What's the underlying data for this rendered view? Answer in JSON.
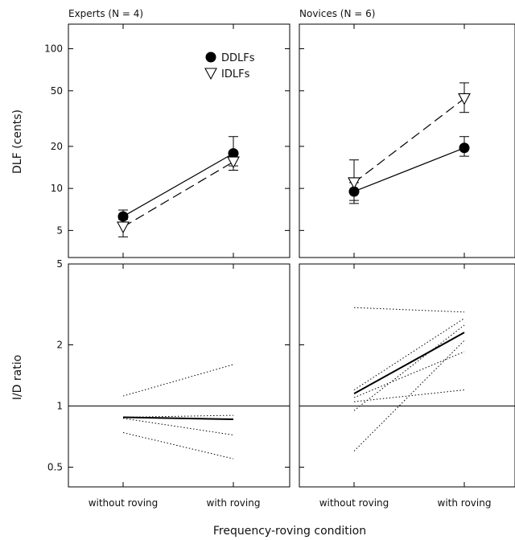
{
  "chart_data": {
    "type": "line",
    "xlabel": "Frequency-roving condition",
    "categories": [
      "without roving",
      "with roving"
    ],
    "top_panels": {
      "ylabel": "DLF (cents)",
      "y_scale": "log",
      "ylim": [
        3.2,
        150
      ],
      "yticks": [
        5,
        10,
        20,
        50,
        100
      ],
      "legend": {
        "placement": "top-right of left panel",
        "items": [
          "DDLFs",
          "IDLFs"
        ]
      },
      "panels": [
        {
          "title": "Experts (N = 4)",
          "series": [
            {
              "name": "DDLFs",
              "values": [
                6.3,
                17.8
              ],
              "err_lower": [
                5.6,
                14.5
              ],
              "err_upper": [
                7.0,
                23.5
              ]
            },
            {
              "name": "IDLFs",
              "values": [
                5.3,
                15.5
              ],
              "err_lower": [
                4.5,
                13.5
              ],
              "err_upper": [
                6.0,
                17.5
              ]
            }
          ]
        },
        {
          "title": "Novices (N = 6)",
          "series": [
            {
              "name": "DDLFs",
              "values": [
                9.5,
                19.5
              ],
              "err_lower": [
                8.2,
                17.0
              ],
              "err_upper": [
                11.0,
                23.5
              ]
            },
            {
              "name": "IDLFs",
              "values": [
                11.0,
                44.0
              ],
              "err_lower": [
                7.8,
                35.0
              ],
              "err_upper": [
                16.0,
                57.0
              ]
            }
          ]
        }
      ]
    },
    "bottom_panels": {
      "ylabel": "I/D ratio",
      "y_scale": "log",
      "ylim": [
        0.4,
        5
      ],
      "yticks": [
        0.5,
        1,
        2,
        5
      ],
      "reference_line": 1,
      "panels": [
        {
          "mean": [
            0.88,
            0.86
          ],
          "individuals": [
            [
              1.12,
              1.6
            ],
            [
              0.87,
              0.72
            ],
            [
              0.88,
              0.9
            ],
            [
              0.74,
              0.55
            ]
          ]
        },
        {
          "mean": [
            1.15,
            2.3
          ],
          "individuals": [
            [
              3.05,
              2.9
            ],
            [
              1.2,
              2.7
            ],
            [
              1.1,
              1.85
            ],
            [
              1.05,
              1.2
            ],
            [
              0.95,
              2.5
            ],
            [
              0.6,
              2.1
            ]
          ]
        }
      ]
    }
  }
}
